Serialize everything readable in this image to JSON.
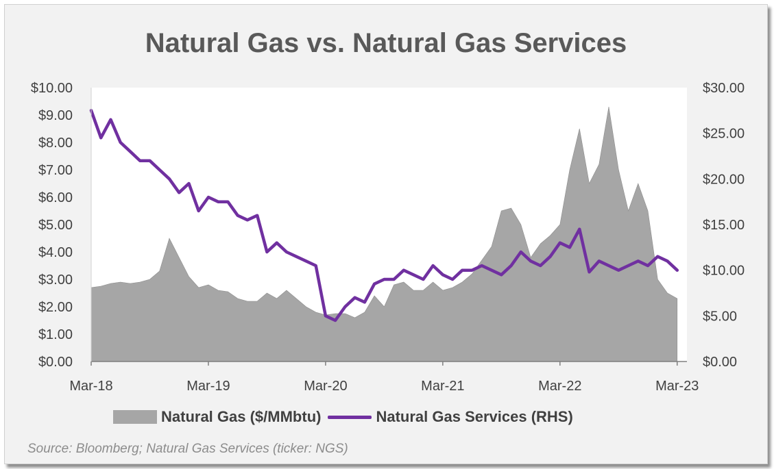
{
  "title": "Natural Gas vs. Natural Gas Services",
  "source": "Source: Bloomberg; Natural Gas Services (ticker: NGS)",
  "colors": {
    "area": "#a6a6a6",
    "line": "#7030a0",
    "plot_bg": "#ffffff",
    "frame_bg": "#f2f2f2"
  },
  "chart_data": {
    "type": "area",
    "title": "Natural Gas vs. Natural Gas Services",
    "x_ticks": [
      "Mar-18",
      "Mar-19",
      "Mar-20",
      "Mar-21",
      "Mar-22",
      "Mar-23"
    ],
    "x_range": [
      "2018-03",
      "2023-04"
    ],
    "y_left": {
      "ticks": [
        "$0.00",
        "$1.00",
        "$2.00",
        "$3.00",
        "$4.00",
        "$5.00",
        "$6.00",
        "$7.00",
        "$8.00",
        "$9.00",
        "$10.00"
      ],
      "range": [
        0,
        10
      ]
    },
    "y_right": {
      "ticks": [
        "$0.00",
        "$5.00",
        "$10.00",
        "$15.00",
        "$20.00",
        "$25.00",
        "$30.00"
      ],
      "range": [
        0,
        30
      ]
    },
    "grid": false,
    "legend_position": "bottom",
    "series": [
      {
        "name": "Natural Gas ($/MMbtu)",
        "type": "area",
        "axis": "left",
        "x": [
          "2018-03",
          "2018-04",
          "2018-05",
          "2018-06",
          "2018-07",
          "2018-08",
          "2018-09",
          "2018-10",
          "2018-11",
          "2018-12",
          "2019-01",
          "2019-02",
          "2019-03",
          "2019-04",
          "2019-05",
          "2019-06",
          "2019-07",
          "2019-08",
          "2019-09",
          "2019-10",
          "2019-11",
          "2019-12",
          "2020-01",
          "2020-02",
          "2020-03",
          "2020-04",
          "2020-05",
          "2020-06",
          "2020-07",
          "2020-08",
          "2020-09",
          "2020-10",
          "2020-11",
          "2020-12",
          "2021-01",
          "2021-02",
          "2021-03",
          "2021-04",
          "2021-05",
          "2021-06",
          "2021-07",
          "2021-08",
          "2021-09",
          "2021-10",
          "2021-11",
          "2021-12",
          "2022-01",
          "2022-02",
          "2022-03",
          "2022-04",
          "2022-05",
          "2022-06",
          "2022-07",
          "2022-08",
          "2022-09",
          "2022-10",
          "2022-11",
          "2022-12",
          "2023-01",
          "2023-02",
          "2023-03"
        ],
        "values": [
          2.7,
          2.75,
          2.85,
          2.9,
          2.85,
          2.9,
          3.0,
          3.3,
          4.5,
          3.8,
          3.1,
          2.7,
          2.8,
          2.6,
          2.55,
          2.3,
          2.2,
          2.2,
          2.5,
          2.3,
          2.6,
          2.3,
          2.0,
          1.8,
          1.7,
          1.75,
          1.75,
          1.6,
          1.8,
          2.4,
          2.0,
          2.8,
          2.9,
          2.6,
          2.6,
          2.9,
          2.6,
          2.7,
          2.9,
          3.2,
          3.7,
          4.2,
          5.5,
          5.6,
          5.0,
          3.8,
          4.3,
          4.6,
          5.0,
          7.0,
          8.5,
          6.5,
          7.2,
          9.3,
          7.0,
          5.5,
          6.5,
          5.5,
          3.0,
          2.5,
          2.3
        ]
      },
      {
        "name": "Natural Gas Services (RHS)",
        "type": "line",
        "axis": "right",
        "x": [
          "2018-03",
          "2018-04",
          "2018-05",
          "2018-06",
          "2018-07",
          "2018-08",
          "2018-09",
          "2018-10",
          "2018-11",
          "2018-12",
          "2019-01",
          "2019-02",
          "2019-03",
          "2019-04",
          "2019-05",
          "2019-06",
          "2019-07",
          "2019-08",
          "2019-09",
          "2019-10",
          "2019-11",
          "2019-12",
          "2020-01",
          "2020-02",
          "2020-03",
          "2020-04",
          "2020-05",
          "2020-06",
          "2020-07",
          "2020-08",
          "2020-09",
          "2020-10",
          "2020-11",
          "2020-12",
          "2021-01",
          "2021-02",
          "2021-03",
          "2021-04",
          "2021-05",
          "2021-06",
          "2021-07",
          "2021-08",
          "2021-09",
          "2021-10",
          "2021-11",
          "2021-12",
          "2022-01",
          "2022-02",
          "2022-03",
          "2022-04",
          "2022-05",
          "2022-06",
          "2022-07",
          "2022-08",
          "2022-09",
          "2022-10",
          "2022-11",
          "2022-12",
          "2023-01",
          "2023-02",
          "2023-03"
        ],
        "values": [
          27.5,
          24.5,
          26.5,
          24,
          23,
          22,
          22,
          21,
          20,
          18.5,
          19.5,
          16.5,
          18,
          17.5,
          17.5,
          16,
          15.5,
          16,
          12,
          13,
          12,
          11.5,
          11,
          10.5,
          5,
          4.5,
          6,
          7,
          6.5,
          8.5,
          9,
          9,
          10,
          9.5,
          9,
          10.5,
          9.5,
          9,
          10,
          10,
          10.5,
          10,
          9.5,
          10.5,
          12,
          11,
          10.5,
          11.5,
          13,
          12.5,
          14.5,
          9.8,
          11,
          10.5,
          10,
          10.5,
          11,
          10.5,
          11.5,
          11,
          10
        ]
      }
    ]
  }
}
